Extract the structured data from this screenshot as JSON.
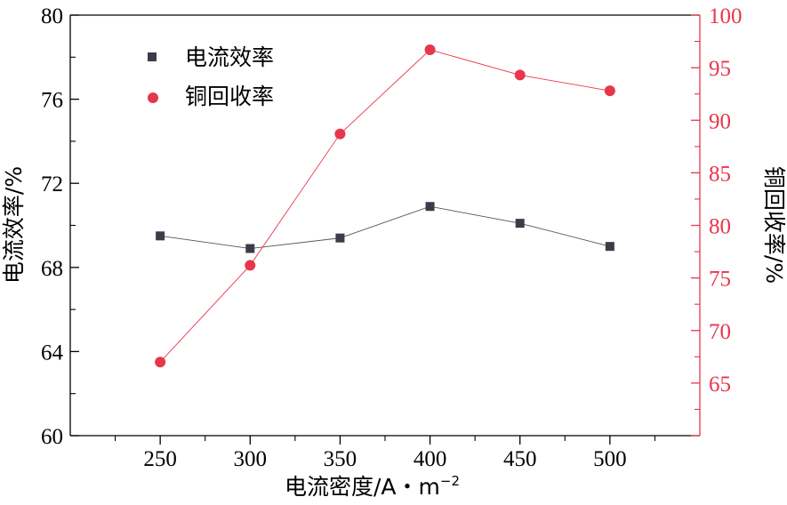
{
  "chart_data": {
    "type": "line",
    "x": [
      250,
      300,
      350,
      400,
      450,
      500
    ],
    "xlabel": "电流密度/A・m",
    "xlabel_sup": "−2",
    "xlim": [
      200,
      550
    ],
    "xticks": [
      "250",
      "300",
      "350",
      "400",
      "450",
      "500"
    ],
    "ylabel_left": "电流效率/%",
    "ylim_left": [
      60,
      80
    ],
    "yticks_left": [
      "60",
      "64",
      "68",
      "72",
      "76",
      "80"
    ],
    "ylabel_right": "铜回收率/%",
    "ylim_right": [
      60,
      100
    ],
    "yticks_right": [
      "65",
      "70",
      "75",
      "80",
      "85",
      "90",
      "95",
      "100"
    ],
    "series": [
      {
        "name": "电流效率",
        "axis": "left",
        "marker": "square",
        "color": "#3a3d48",
        "line_color": "#555555",
        "values": [
          69.5,
          68.9,
          69.4,
          70.9,
          70.1,
          69.0
        ]
      },
      {
        "name": "铜回收率",
        "axis": "right",
        "marker": "circle",
        "color": "#e8364b",
        "line_color": "#e8364b",
        "values": [
          67.0,
          76.2,
          88.7,
          96.7,
          94.3,
          92.8
        ]
      }
    ],
    "legend": "top-left",
    "grid": false
  }
}
